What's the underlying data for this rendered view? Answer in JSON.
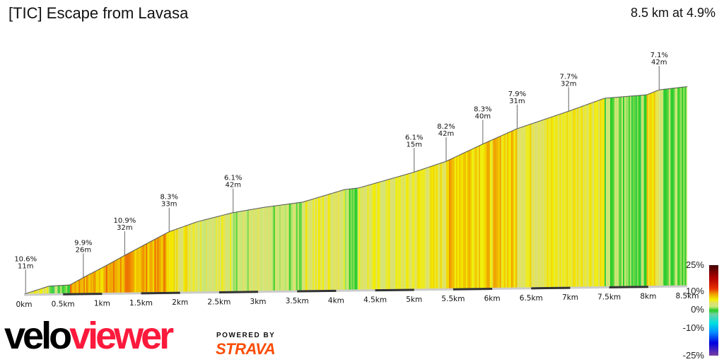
{
  "header": {
    "title": "[TIC] Escape from Lavasa",
    "summary": "8.5 km at 4.9%"
  },
  "branding": {
    "logo_part1": "velo",
    "logo_part2": "viewer",
    "powered_by": "POWERED BY",
    "strava": "STRAVA"
  },
  "chart_data": {
    "type": "area",
    "title": "[TIC] Escape from Lavasa",
    "xlabel": "",
    "ylabel": "",
    "xlim": [
      0,
      8.5
    ],
    "x_ticks": [
      "0km",
      "0.5km",
      "1km",
      "1.5km",
      "2km",
      "2.5km",
      "3km",
      "3.5km",
      "4km",
      "4.5km",
      "5km",
      "5.5km",
      "6km",
      "6.5km",
      "7km",
      "7.5km",
      "8km",
      "8.5km"
    ],
    "x_tick_values": [
      0,
      0.5,
      1,
      1.5,
      2,
      2.5,
      3,
      3.5,
      4,
      4.5,
      5,
      5.5,
      6,
      6.5,
      7,
      7.5,
      8,
      8.5
    ],
    "profile_km": [
      0,
      0.32,
      0.59,
      0.76,
      1.05,
      1.29,
      1.86,
      2.22,
      2.68,
      3.07,
      3.57,
      4.11,
      4.29,
      4.97,
      5.41,
      5.88,
      6.32,
      6.98,
      7.44,
      7.98,
      8.14,
      8.5
    ],
    "profile_elev_m": [
      0,
      16,
      18,
      33,
      57,
      78,
      126,
      146,
      164,
      174,
      184,
      209,
      212,
      242,
      265,
      300,
      331,
      366,
      392,
      398,
      408,
      414
    ],
    "annotations": [
      {
        "km": 0.02,
        "gradient": "10.6%",
        "length": "11m"
      },
      {
        "km": 0.76,
        "gradient": "9.9%",
        "length": "26m"
      },
      {
        "km": 1.29,
        "gradient": "10.9%",
        "length": "32m"
      },
      {
        "km": 1.86,
        "gradient": "8.3%",
        "length": "33m"
      },
      {
        "km": 2.68,
        "gradient": "6.1%",
        "length": "42m"
      },
      {
        "km": 5.0,
        "gradient": "6.1%",
        "length": "15m"
      },
      {
        "km": 5.41,
        "gradient": "8.2%",
        "length": "42m"
      },
      {
        "km": 5.88,
        "gradient": "8.3%",
        "length": "40m"
      },
      {
        "km": 6.32,
        "gradient": "7.9%",
        "length": "31m"
      },
      {
        "km": 6.98,
        "gradient": "7.7%",
        "length": "32m"
      },
      {
        "km": 8.14,
        "gradient": "7.1%",
        "length": "42m"
      }
    ],
    "legend": {
      "labels": [
        "25%",
        "10%",
        "0%",
        "-10%",
        "-25%"
      ],
      "values": [
        25,
        10,
        0,
        -10,
        -25
      ],
      "placement": "bottom-right"
    },
    "colors": {
      "stops": [
        [
          -25,
          "#7a3fa0"
        ],
        [
          -18,
          "#0000e0"
        ],
        [
          -12,
          "#0090ff"
        ],
        [
          -7,
          "#00e0e0"
        ],
        [
          -2,
          "#70d0a0"
        ],
        [
          0,
          "#22cc22"
        ],
        [
          2,
          "#c8e878"
        ],
        [
          4,
          "#e0e070"
        ],
        [
          6,
          "#f2f000"
        ],
        [
          9,
          "#f0a000"
        ],
        [
          12,
          "#e83000"
        ],
        [
          18,
          "#b00000"
        ],
        [
          25,
          "#400000"
        ]
      ]
    }
  }
}
